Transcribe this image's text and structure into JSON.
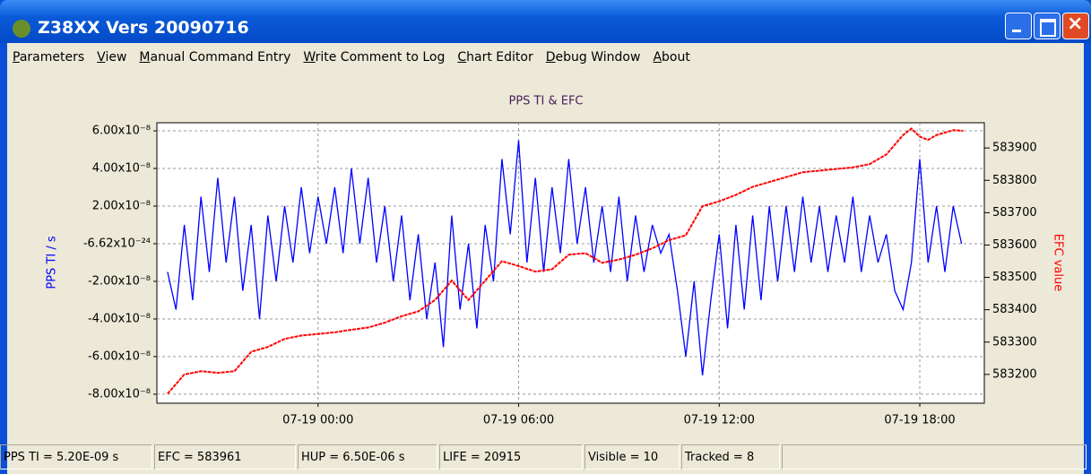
{
  "window": {
    "title": "Z38XX Vers 20090716"
  },
  "menu": [
    "Parameters",
    "View",
    "Manual Command Entry",
    "Write Comment to Log",
    "Chart Editor",
    "Debug Window",
    "About"
  ],
  "chart_data": {
    "type": "line",
    "title": "PPS TI & EFC",
    "y_label": "PPS TI / s",
    "y2_label": "EFC value",
    "xlim": [
      -4.82,
      19.93
    ],
    "xticks": [
      {
        "value": 0,
        "label": "07-19 00:00"
      },
      {
        "value": 6,
        "label": "07-19 06:00"
      },
      {
        "value": 12,
        "label": "07-19 12:00"
      },
      {
        "value": 18,
        "label": "07-19 18:00"
      }
    ],
    "ylim": [
      -8.48e-08,
      6.43e-08
    ],
    "yticks": [
      {
        "value": 6e-08,
        "label": "6.00x10⁻⁸"
      },
      {
        "value": 4e-08,
        "label": "4.00x10⁻⁸"
      },
      {
        "value": 2e-08,
        "label": "2.00x10⁻⁸"
      },
      {
        "value": -6.62e-24,
        "label": "-6.62x10⁻²⁴"
      },
      {
        "value": -2e-08,
        "label": "-2.00x10⁻⁸"
      },
      {
        "value": -4e-08,
        "label": "-4.00x10⁻⁸"
      },
      {
        "value": -6e-08,
        "label": "-6.00x10⁻⁸"
      },
      {
        "value": -8e-08,
        "label": "-8.00x10⁻⁸"
      }
    ],
    "y2lim": [
      583111,
      583978
    ],
    "y2ticks": [
      583200,
      583300,
      583400,
      583500,
      583600,
      583700,
      583800,
      583900
    ],
    "grid": true,
    "series": [
      {
        "color": "#0000ff",
        "x": [
          -4.5,
          -4.25,
          -4,
          -3.75,
          -3.5,
          -3.25,
          -3,
          -2.75,
          -2.5,
          -2.25,
          -2,
          -1.75,
          -1.5,
          -1.25,
          -1,
          -0.75,
          -0.5,
          -0.25,
          0,
          0.25,
          0.5,
          0.75,
          1,
          1.25,
          1.5,
          1.75,
          2,
          2.25,
          2.5,
          2.75,
          3,
          3.25,
          3.5,
          3.75,
          4,
          4.25,
          4.5,
          4.75,
          5,
          5.25,
          5.5,
          5.75,
          6,
          6.25,
          6.5,
          6.75,
          7,
          7.25,
          7.5,
          7.75,
          8,
          8.25,
          8.5,
          8.75,
          9,
          9.25,
          9.5,
          9.75,
          10,
          10.25,
          10.5,
          10.75,
          11,
          11.25,
          11.5,
          11.75,
          12,
          12.25,
          12.5,
          12.75,
          13,
          13.25,
          13.5,
          13.75,
          14,
          14.25,
          14.5,
          14.75,
          15,
          15.25,
          15.5,
          15.75,
          16,
          16.25,
          16.5,
          16.75,
          17,
          17.25,
          17.5,
          17.75,
          18,
          18.25,
          18.5,
          18.75,
          19,
          19.25
        ],
        "values": [
          -1.5e-08,
          -3.5e-08,
          1e-08,
          -3e-08,
          2.5e-08,
          -1.5e-08,
          3.5e-08,
          -1e-08,
          2.5e-08,
          -2.5e-08,
          1e-08,
          -4e-08,
          1.5e-08,
          -2e-08,
          2e-08,
          -1e-08,
          3e-08,
          -5e-09,
          2.5e-08,
          0,
          3e-08,
          -5e-09,
          4e-08,
          0,
          3.5e-08,
          -1e-08,
          2e-08,
          -2e-08,
          1.5e-08,
          -3e-08,
          5e-09,
          -4e-08,
          -1e-08,
          -5.5e-08,
          1.5e-08,
          -3.5e-08,
          0,
          -4.5e-08,
          1e-08,
          -2e-08,
          4.5e-08,
          5e-09,
          5.5e-08,
          -1e-08,
          3.5e-08,
          -1.5e-08,
          3e-08,
          -5e-09,
          4.5e-08,
          0,
          3e-08,
          -1e-08,
          2e-08,
          -1.5e-08,
          2.5e-08,
          -2e-08,
          1.5e-08,
          -1.5e-08,
          1e-08,
          -5e-09,
          5e-09,
          -2.5e-08,
          -6e-08,
          -2e-08,
          -7e-08,
          -3e-08,
          5e-09,
          -4.5e-08,
          1e-08,
          -3.5e-08,
          1.5e-08,
          -3e-08,
          2e-08,
          -2e-08,
          2e-08,
          -1.5e-08,
          2.5e-08,
          -1e-08,
          2e-08,
          -1.5e-08,
          1.5e-08,
          -1e-08,
          2.5e-08,
          -1.5e-08,
          1.5e-08,
          -1e-08,
          5e-09,
          -2.5e-08,
          -3.5e-08,
          -1e-08,
          4.5e-08,
          -1e-08,
          2e-08,
          -1.5e-08,
          2e-08,
          0
        ]
      },
      {
        "color": "#ff0000",
        "axis": "y2",
        "x": [
          -4.5,
          -4,
          -3.5,
          -3,
          -2.5,
          -2,
          -1.5,
          -1,
          -0.5,
          0,
          0.5,
          1,
          1.5,
          2,
          2.5,
          3,
          3.5,
          4,
          4.5,
          5,
          5.5,
          6,
          6.5,
          7,
          7.5,
          8,
          8.5,
          9,
          9.5,
          10,
          10.5,
          11,
          11.5,
          12,
          12.5,
          13,
          13.5,
          14,
          14.5,
          15,
          15.5,
          16,
          16.5,
          17,
          17.5,
          17.75,
          18,
          18.25,
          18.5,
          19,
          19.3
        ],
        "values": [
          583140,
          583200,
          583210,
          583205,
          583210,
          583270,
          583285,
          583310,
          583320,
          583325,
          583330,
          583338,
          583345,
          583360,
          583380,
          583395,
          583430,
          583490,
          583430,
          583490,
          583550,
          583535,
          583518,
          583525,
          583570,
          583575,
          583545,
          583555,
          583570,
          583590,
          583615,
          583630,
          583720,
          583735,
          583755,
          583780,
          583795,
          583810,
          583825,
          583830,
          583835,
          583840,
          583850,
          583880,
          583940,
          583960,
          583935,
          583925,
          583940,
          583955,
          583953
        ]
      }
    ]
  },
  "status_bar": [
    "PPS TI = 5.20E-09 s",
    "EFC = 583961",
    "HUP = 6.50E-06 s",
    "LIFE = 20915",
    "Visible = 10",
    "Tracked = 8"
  ]
}
